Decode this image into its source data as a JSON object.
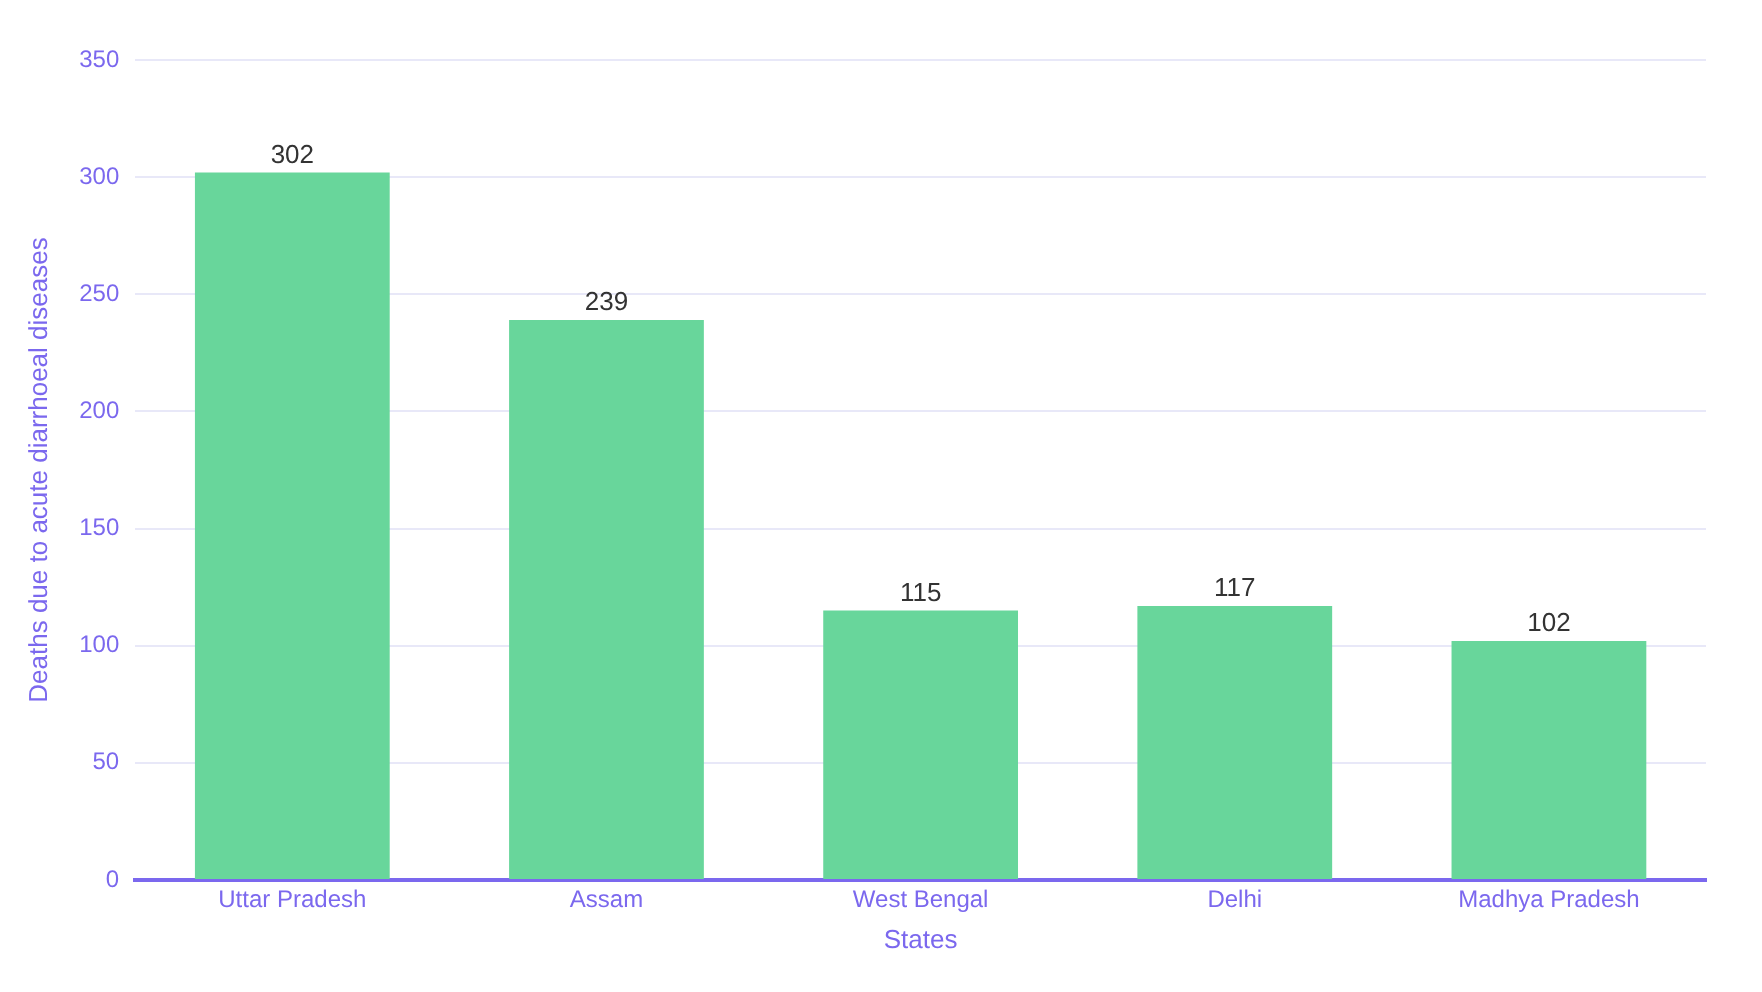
{
  "chart_data": {
    "type": "bar",
    "xlabel": "States",
    "ylabel": "Deaths due to acute diarrhoeal diseases",
    "categories": [
      "Uttar Pradesh",
      "Assam",
      "West Bengal",
      "Delhi",
      "Madhya Pradesh"
    ],
    "values": [
      302,
      239,
      115,
      117,
      102
    ],
    "color": "#68d69b",
    "ylim": [
      0,
      350
    ],
    "yticks": [
      0,
      50,
      100,
      150,
      200,
      250,
      300,
      350
    ],
    "grid": "y",
    "data_labels": true
  }
}
